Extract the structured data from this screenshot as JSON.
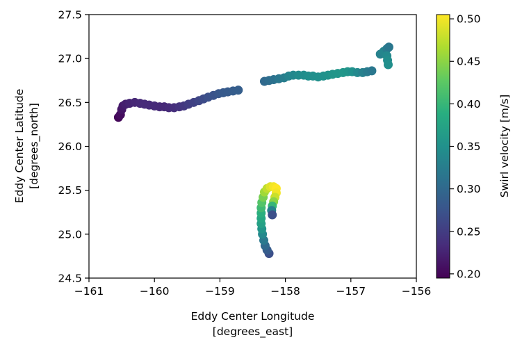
{
  "chart_data": {
    "type": "scatter",
    "xlabel_line1": "Eddy Center Longitude",
    "xlabel_line2": "[degrees_east]",
    "ylabel_line1": "Eddy Center Latitude",
    "ylabel_line2": "[degrees_north]",
    "colorbar_label": "Swirl velocity [m/s]",
    "xlim": [
      -161,
      -156
    ],
    "ylim": [
      24.5,
      27.5
    ],
    "clim": [
      0.195,
      0.505
    ],
    "colormap": "viridis",
    "x_ticks": [
      -161,
      -160,
      -159,
      -158,
      -157,
      -156
    ],
    "x_tick_labels": [
      "−161",
      "−160",
      "−159",
      "−158",
      "−157",
      "−156"
    ],
    "y_ticks": [
      24.5,
      25.0,
      25.5,
      26.0,
      26.5,
      27.0,
      27.5
    ],
    "y_tick_labels": [
      "24.5",
      "25.0",
      "25.5",
      "26.0",
      "26.5",
      "27.0",
      "27.5"
    ],
    "c_ticks": [
      0.2,
      0.25,
      0.3,
      0.35,
      0.4,
      0.45,
      0.5
    ],
    "c_tick_labels": [
      "0.20",
      "0.25",
      "0.30",
      "0.35",
      "0.40",
      "0.45",
      "0.50"
    ],
    "points": [
      [
        -160.55,
        26.33,
        0.2
      ],
      [
        -160.52,
        26.36,
        0.205
      ],
      [
        -160.5,
        26.42,
        0.212
      ],
      [
        -160.48,
        26.46,
        0.218
      ],
      [
        -160.44,
        26.48,
        0.222
      ],
      [
        -160.38,
        26.49,
        0.226
      ],
      [
        -160.3,
        26.5,
        0.229
      ],
      [
        -160.22,
        26.49,
        0.231
      ],
      [
        -160.15,
        26.48,
        0.232
      ],
      [
        -160.08,
        26.47,
        0.232
      ],
      [
        -160.0,
        26.46,
        0.232
      ],
      [
        -159.92,
        26.45,
        0.231
      ],
      [
        -159.85,
        26.45,
        0.23
      ],
      [
        -159.78,
        26.44,
        0.232
      ],
      [
        -159.7,
        26.44,
        0.236
      ],
      [
        -159.62,
        26.45,
        0.24
      ],
      [
        -159.55,
        26.46,
        0.245
      ],
      [
        -159.48,
        26.48,
        0.25
      ],
      [
        -159.4,
        26.5,
        0.255
      ],
      [
        -159.32,
        26.52,
        0.26
      ],
      [
        -159.25,
        26.54,
        0.265
      ],
      [
        -159.18,
        26.56,
        0.27
      ],
      [
        -159.1,
        26.58,
        0.274
      ],
      [
        -159.02,
        26.6,
        0.278
      ],
      [
        -158.95,
        26.61,
        0.282
      ],
      [
        -158.88,
        26.62,
        0.284
      ],
      [
        -158.8,
        26.63,
        0.286
      ],
      [
        -158.72,
        26.64,
        0.287
      ],
      [
        -158.32,
        26.74,
        0.3
      ],
      [
        -158.25,
        26.75,
        0.305
      ],
      [
        -158.18,
        26.76,
        0.31
      ],
      [
        -158.1,
        26.77,
        0.318
      ],
      [
        -158.02,
        26.78,
        0.325
      ],
      [
        -157.95,
        26.8,
        0.332
      ],
      [
        -157.88,
        26.81,
        0.338
      ],
      [
        -157.8,
        26.81,
        0.342
      ],
      [
        -157.72,
        26.81,
        0.345
      ],
      [
        -157.65,
        26.8,
        0.347
      ],
      [
        -157.58,
        26.8,
        0.348
      ],
      [
        -157.5,
        26.79,
        0.349
      ],
      [
        -157.42,
        26.8,
        0.35
      ],
      [
        -157.35,
        26.81,
        0.352
      ],
      [
        -157.28,
        26.82,
        0.355
      ],
      [
        -157.2,
        26.83,
        0.357
      ],
      [
        -157.12,
        26.84,
        0.358
      ],
      [
        -157.05,
        26.85,
        0.356
      ],
      [
        -156.98,
        26.85,
        0.35
      ],
      [
        -156.9,
        26.84,
        0.34
      ],
      [
        -156.82,
        26.84,
        0.33
      ],
      [
        -156.75,
        26.85,
        0.322
      ],
      [
        -156.68,
        26.86,
        0.318
      ],
      [
        -156.55,
        27.05,
        0.33
      ],
      [
        -156.5,
        27.08,
        0.335
      ],
      [
        -156.45,
        27.11,
        0.325
      ],
      [
        -156.42,
        27.13,
        0.318
      ],
      [
        -156.45,
        27.03,
        0.34
      ],
      [
        -156.44,
        26.98,
        0.345
      ],
      [
        -156.43,
        26.93,
        0.348
      ],
      [
        -158.25,
        24.78,
        0.27
      ],
      [
        -158.28,
        24.82,
        0.285
      ],
      [
        -158.31,
        24.87,
        0.3
      ],
      [
        -158.33,
        24.93,
        0.32
      ],
      [
        -158.35,
        25.0,
        0.34
      ],
      [
        -158.36,
        25.06,
        0.355
      ],
      [
        -158.37,
        25.12,
        0.37
      ],
      [
        -158.37,
        25.18,
        0.38
      ],
      [
        -158.37,
        25.24,
        0.39
      ],
      [
        -158.37,
        25.3,
        0.405
      ],
      [
        -158.36,
        25.36,
        0.42
      ],
      [
        -158.34,
        25.42,
        0.44
      ],
      [
        -158.32,
        25.48,
        0.46
      ],
      [
        -158.28,
        25.52,
        0.475
      ],
      [
        -158.23,
        25.54,
        0.49
      ],
      [
        -158.18,
        25.54,
        0.5
      ],
      [
        -158.14,
        25.52,
        0.505
      ],
      [
        -158.14,
        25.47,
        0.5
      ],
      [
        -158.16,
        25.42,
        0.48
      ],
      [
        -158.18,
        25.37,
        0.45
      ],
      [
        -158.2,
        25.32,
        0.4
      ],
      [
        -158.21,
        25.27,
        0.33
      ],
      [
        -158.2,
        25.22,
        0.27
      ]
    ]
  }
}
